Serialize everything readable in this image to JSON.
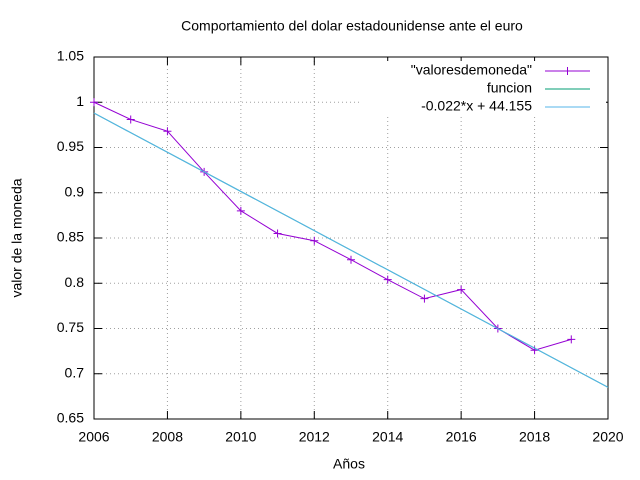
{
  "chart_data": {
    "type": "line",
    "title": "Comportamiento del dolar estadounidense ante el euro",
    "xlabel": "Años",
    "ylabel": "valor de la moneda",
    "xlim": [
      2006,
      2020
    ],
    "ylim": [
      0.65,
      1.05
    ],
    "xticks": [
      2006,
      2008,
      2010,
      2012,
      2014,
      2016,
      2018,
      2020
    ],
    "yticks": [
      0.65,
      0.7,
      0.75,
      0.8,
      0.85,
      0.9,
      0.95,
      1,
      1.05
    ],
    "grid": true,
    "legend": "top right",
    "series": [
      {
        "name": "\"valoresdemoneda\"",
        "color": "#9400d3",
        "marker": "plus",
        "x": [
          2006,
          2007,
          2008,
          2009,
          2010,
          2011,
          2012,
          2013,
          2014,
          2015,
          2016,
          2017,
          2018,
          2019
        ],
        "values": [
          1.0,
          0.981,
          0.968,
          0.923,
          0.88,
          0.855,
          0.847,
          0.826,
          0.804,
          0.783,
          0.793,
          0.75,
          0.726,
          0.738
        ]
      },
      {
        "name": "funcion",
        "color": "#009e73",
        "x": [
          2006,
          2020
        ],
        "values": [
          0.988,
          0.685
        ]
      },
      {
        "name": "-0.022*x + 44.155",
        "color": "#56b4e9",
        "x": [
          2006,
          2020
        ],
        "values": [
          0.988,
          0.685
        ]
      }
    ]
  }
}
